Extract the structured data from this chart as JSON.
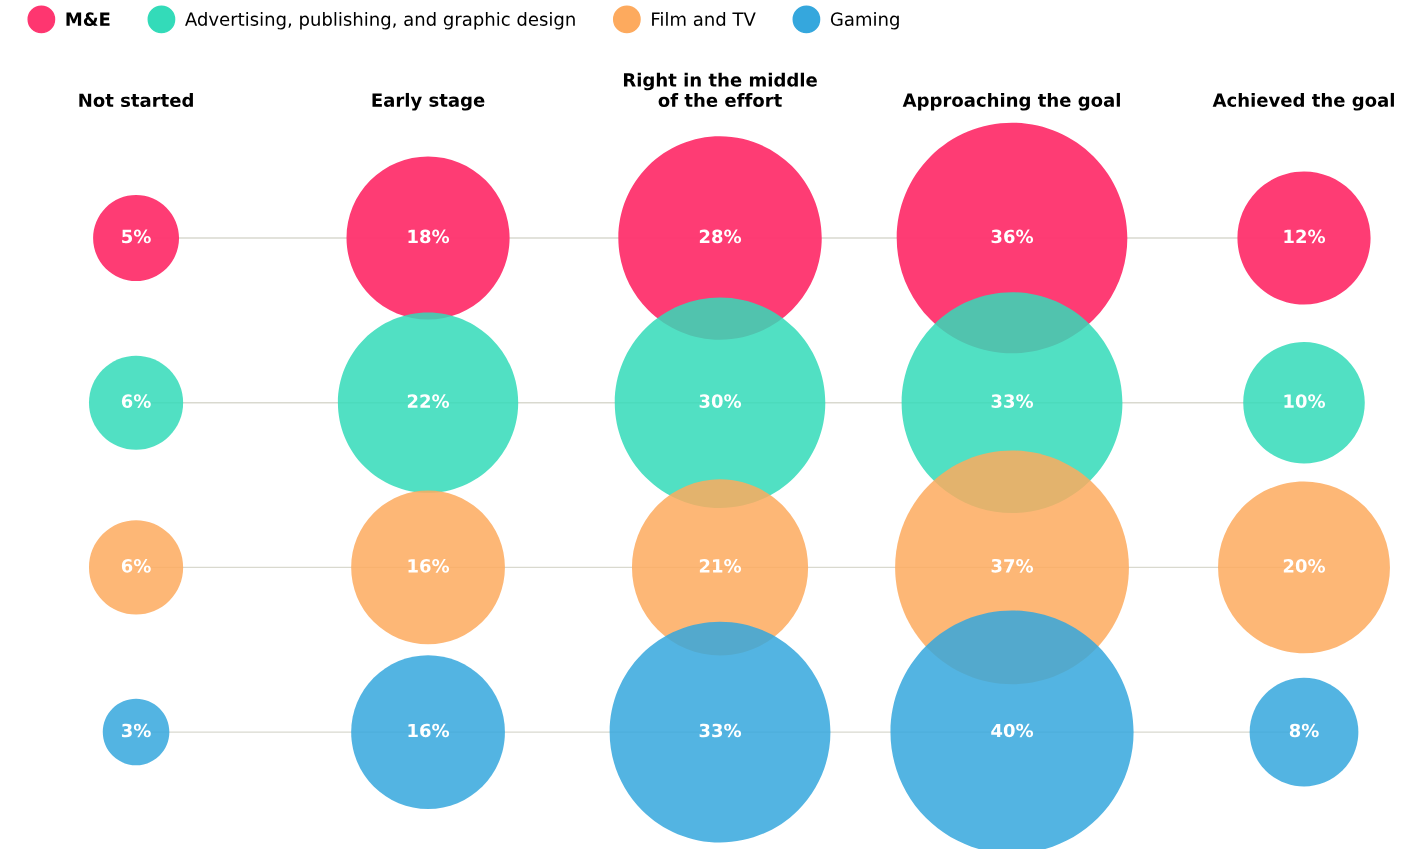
{
  "chart_data": {
    "type": "other",
    "categories": [
      "Not started",
      "Early stage",
      "Right in the middle\nof the effort",
      "Approaching the goal",
      "Achieved the goal"
    ],
    "series": [
      {
        "name": "M&E",
        "color": "#fe3670",
        "values": [
          5,
          18,
          28,
          36,
          12
        ],
        "value_labels": [
          "5%",
          "18%",
          "28%",
          "36%",
          "12%"
        ]
      },
      {
        "name": "Advertising, publishing, and graphic design",
        "color": "#33dbb9",
        "values": [
          6,
          22,
          30,
          33,
          10
        ],
        "value_labels": [
          "6%",
          "22%",
          "30%",
          "33%",
          "10%"
        ]
      },
      {
        "name": "Film and TV",
        "color": "#fdaa5e",
        "values": [
          6,
          16,
          21,
          37,
          20
        ],
        "value_labels": [
          "6%",
          "16%",
          "21%",
          "37%",
          "20%"
        ]
      },
      {
        "name": "Gaming",
        "color": "#35a7dd",
        "values": [
          3,
          16,
          33,
          40,
          8
        ],
        "value_labels": [
          "3%",
          "16%",
          "33%",
          "40%",
          "8%"
        ]
      }
    ],
    "legend": "top left"
  }
}
